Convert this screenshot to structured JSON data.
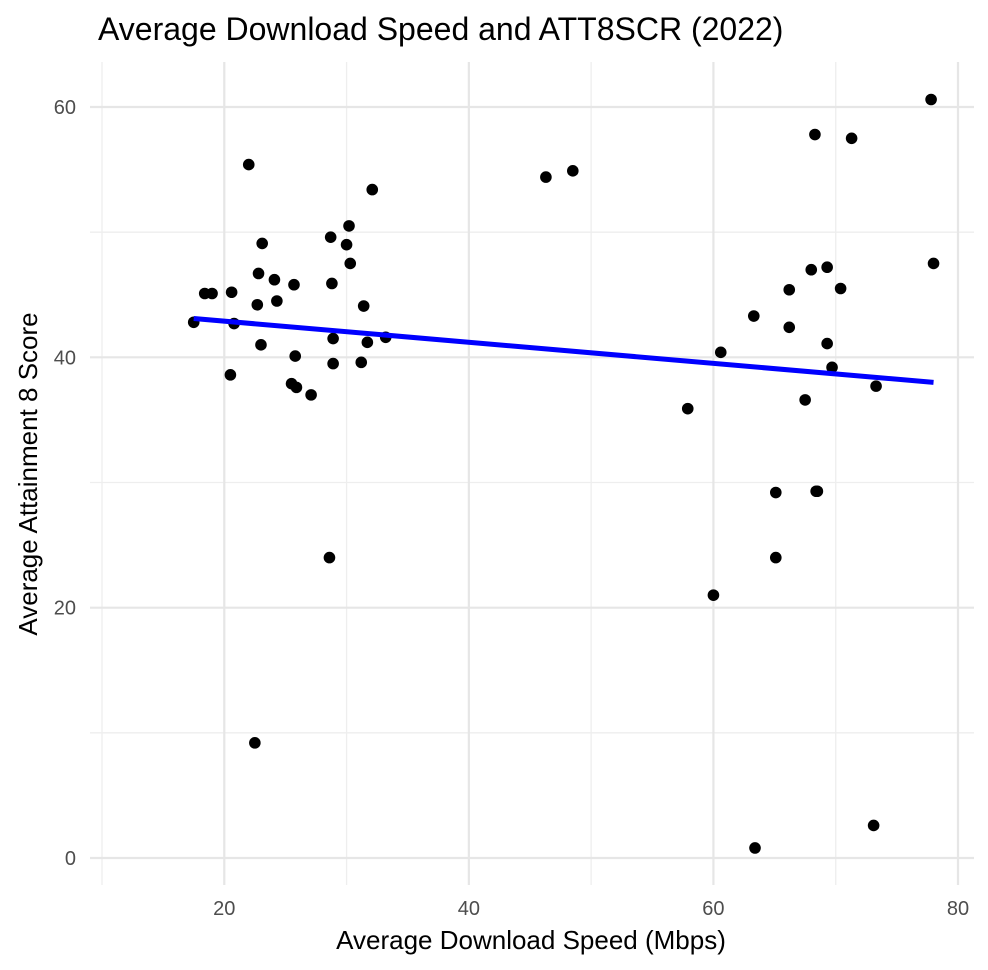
{
  "chart_data": {
    "type": "scatter",
    "title": "Average Download Speed and ATT8SCR (2022)",
    "xlabel": "Average Download Speed (Mbps)",
    "ylabel": "Average Attainment 8 Score",
    "xlim": [
      10,
      80
    ],
    "ylim": [
      0,
      60
    ],
    "x_ticks": [
      20,
      40,
      60,
      80
    ],
    "y_ticks": [
      0,
      20,
      40,
      60
    ],
    "x_minor_ticks": [
      10,
      30,
      50,
      70
    ],
    "y_minor_ticks": [
      10,
      30,
      50
    ],
    "grid": true,
    "legend": "none",
    "point_color": "#000000",
    "trend_color": "#0000ff",
    "points": [
      [
        17.5,
        42.8
      ],
      [
        18.4,
        45.1
      ],
      [
        19.0,
        45.1
      ],
      [
        20.5,
        38.6
      ],
      [
        20.6,
        45.2
      ],
      [
        20.8,
        42.7
      ],
      [
        22.0,
        55.4
      ],
      [
        22.5,
        9.2
      ],
      [
        22.7,
        44.2
      ],
      [
        22.8,
        46.7
      ],
      [
        23.0,
        41.0
      ],
      [
        23.1,
        49.1
      ],
      [
        24.1,
        46.2
      ],
      [
        24.3,
        44.5
      ],
      [
        25.5,
        37.9
      ],
      [
        25.7,
        45.8
      ],
      [
        25.8,
        40.1
      ],
      [
        25.9,
        37.6
      ],
      [
        27.1,
        37.0
      ],
      [
        28.6,
        24.0
      ],
      [
        28.7,
        49.6
      ],
      [
        28.8,
        45.9
      ],
      [
        28.9,
        41.5
      ],
      [
        28.9,
        39.5
      ],
      [
        30.0,
        49.0
      ],
      [
        30.2,
        50.5
      ],
      [
        30.3,
        47.5
      ],
      [
        31.2,
        39.6
      ],
      [
        31.4,
        44.1
      ],
      [
        31.7,
        41.2
      ],
      [
        32.1,
        53.4
      ],
      [
        33.2,
        41.6
      ],
      [
        46.3,
        54.4
      ],
      [
        48.5,
        54.9
      ],
      [
        57.9,
        35.9
      ],
      [
        60.0,
        21.0
      ],
      [
        60.6,
        40.4
      ],
      [
        63.3,
        43.3
      ],
      [
        63.4,
        0.8
      ],
      [
        65.1,
        29.2
      ],
      [
        65.1,
        24.0
      ],
      [
        66.2,
        45.4
      ],
      [
        66.2,
        42.4
      ],
      [
        67.5,
        36.6
      ],
      [
        68.0,
        47.0
      ],
      [
        68.3,
        57.8
      ],
      [
        68.4,
        29.3
      ],
      [
        68.5,
        29.3
      ],
      [
        69.3,
        41.1
      ],
      [
        69.3,
        47.2
      ],
      [
        69.7,
        39.2
      ],
      [
        70.4,
        45.5
      ],
      [
        71.3,
        57.5
      ],
      [
        73.1,
        2.6
      ],
      [
        73.3,
        37.7
      ],
      [
        77.8,
        60.6
      ],
      [
        78.0,
        47.5
      ]
    ],
    "trend_line": {
      "x": [
        17.5,
        78.0
      ],
      "y": [
        43.1,
        38.0
      ]
    }
  }
}
